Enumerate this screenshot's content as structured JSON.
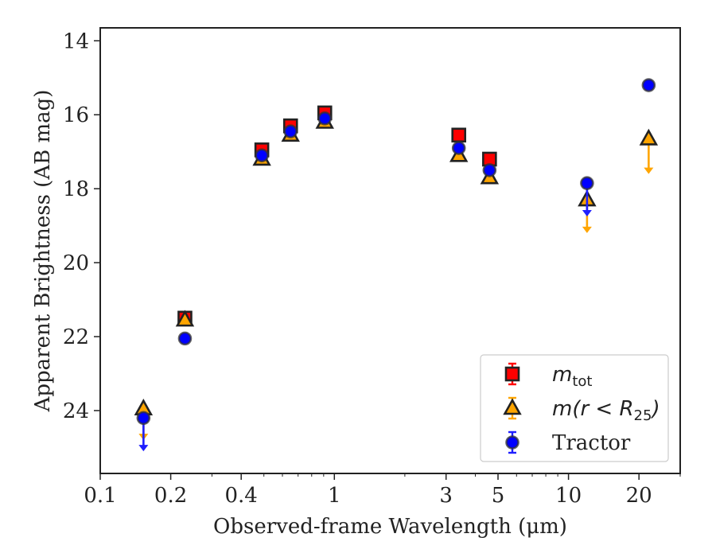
{
  "chart_data": {
    "type": "scatter",
    "xlabel": "Observed-frame Wavelength (μm)",
    "ylabel": "Apparent Brightness (AB mag)",
    "x_scale": "log",
    "xlim": [
      0.1,
      30
    ],
    "ylim": [
      25.7,
      13.65
    ],
    "y_inverted": true,
    "x_ticks": [
      {
        "value": 0.1,
        "label": "0.1"
      },
      {
        "value": 0.2,
        "label": "0.2"
      },
      {
        "value": 0.4,
        "label": "0.4"
      },
      {
        "value": 1,
        "label": "1"
      },
      {
        "value": 3,
        "label": "3"
      },
      {
        "value": 5,
        "label": "5"
      },
      {
        "value": 10,
        "label": "10"
      },
      {
        "value": 20,
        "label": "20"
      }
    ],
    "y_ticks": [
      {
        "value": 14,
        "label": "14"
      },
      {
        "value": 16,
        "label": "16"
      },
      {
        "value": 18,
        "label": "18"
      },
      {
        "value": 20,
        "label": "20"
      },
      {
        "value": 22,
        "label": "22"
      },
      {
        "value": 24,
        "label": "24"
      }
    ],
    "grid": false,
    "legend_position": "bottom-right",
    "series": [
      {
        "name": "m_tot",
        "legend_label": {
          "base": "m",
          "sub": "tot",
          "suffix": ""
        },
        "marker": "square",
        "color": "#ff0000",
        "edge_color": "#222222",
        "errbar_color": "#ff0000",
        "points": [
          {
            "x": 0.23,
            "y": 21.5
          },
          {
            "x": 0.49,
            "y": 16.95
          },
          {
            "x": 0.65,
            "y": 16.3
          },
          {
            "x": 0.91,
            "y": 15.95
          },
          {
            "x": 3.4,
            "y": 16.55
          },
          {
            "x": 4.6,
            "y": 17.2
          }
        ]
      },
      {
        "name": "m(r < R25)",
        "legend_label": {
          "base": "m(r < R",
          "sub": "25",
          "suffix": ")"
        },
        "marker": "triangle",
        "color": "#ffa500",
        "edge_color": "#222222",
        "errbar_color": "#ffa500",
        "points": [
          {
            "x": 0.153,
            "y": 23.95,
            "upper_limit": true,
            "limit_to": 24.8
          },
          {
            "x": 0.23,
            "y": 21.55
          },
          {
            "x": 0.49,
            "y": 17.2
          },
          {
            "x": 0.65,
            "y": 16.55
          },
          {
            "x": 0.91,
            "y": 16.2
          },
          {
            "x": 3.4,
            "y": 17.1
          },
          {
            "x": 4.6,
            "y": 17.7
          },
          {
            "x": 12.0,
            "y": 18.3,
            "upper_limit": true,
            "limit_to": 19.2
          },
          {
            "x": 22.0,
            "y": 16.65,
            "upper_limit": true,
            "limit_to": 17.6
          }
        ]
      },
      {
        "name": "Tractor",
        "legend_label": {
          "base": "Tractor",
          "sub": "",
          "suffix": ""
        },
        "marker": "circle",
        "color": "#0000ff",
        "edge_color": "#333333",
        "errbar_color": "#1f1fff",
        "points": [
          {
            "x": 0.153,
            "y": 24.2,
            "upper_limit": true,
            "limit_to": 25.1
          },
          {
            "x": 0.23,
            "y": 22.05
          },
          {
            "x": 0.49,
            "y": 17.1
          },
          {
            "x": 0.65,
            "y": 16.45
          },
          {
            "x": 0.91,
            "y": 16.1
          },
          {
            "x": 3.4,
            "y": 16.9
          },
          {
            "x": 4.6,
            "y": 17.5
          },
          {
            "x": 12.0,
            "y": 17.85,
            "upper_limit": true,
            "limit_to": 18.75
          },
          {
            "x": 22.0,
            "y": 15.2
          }
        ]
      }
    ]
  }
}
